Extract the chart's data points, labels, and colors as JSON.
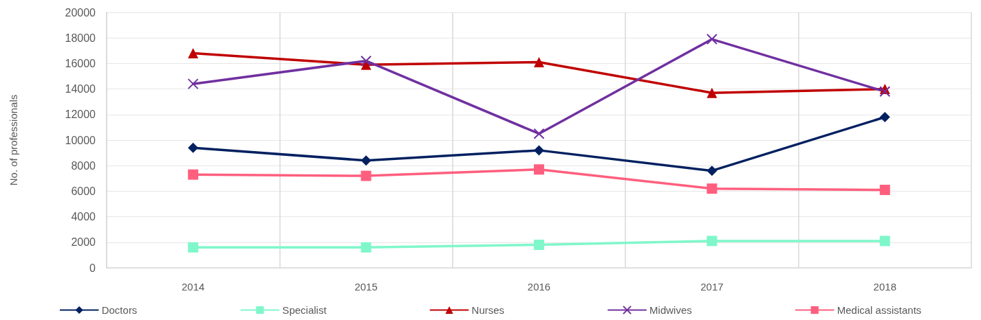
{
  "chart_data": {
    "type": "line",
    "ylabel": "No. of professionals",
    "categories": [
      "2014",
      "2015",
      "2016",
      "2017",
      "2018"
    ],
    "series": [
      {
        "name": "Doctors",
        "color": "#002060",
        "marker": "diamond",
        "values": [
          9400,
          8400,
          9200,
          7600,
          11800
        ]
      },
      {
        "name": "Specialist",
        "color": "#7ff7cb",
        "marker": "square",
        "values": [
          1600,
          1600,
          1800,
          2100,
          2100
        ]
      },
      {
        "name": "Nurses",
        "color": "#c00000",
        "marker": "triangle",
        "values": [
          16800,
          15900,
          16100,
          13700,
          14000
        ]
      },
      {
        "name": "Midwives",
        "color": "#7030a0",
        "marker": "cross",
        "values": [
          14400,
          16200,
          10500,
          17900,
          13800
        ]
      },
      {
        "name": "Medical assistants",
        "color": "#ff5f7e",
        "marker": "square",
        "values": [
          7300,
          7200,
          7700,
          6200,
          6100
        ]
      }
    ],
    "ylim": [
      0,
      20000
    ],
    "yticks": [
      0,
      2000,
      4000,
      6000,
      8000,
      10000,
      12000,
      14000,
      16000,
      18000,
      20000
    ],
    "grid": true,
    "legend": "bottom"
  }
}
